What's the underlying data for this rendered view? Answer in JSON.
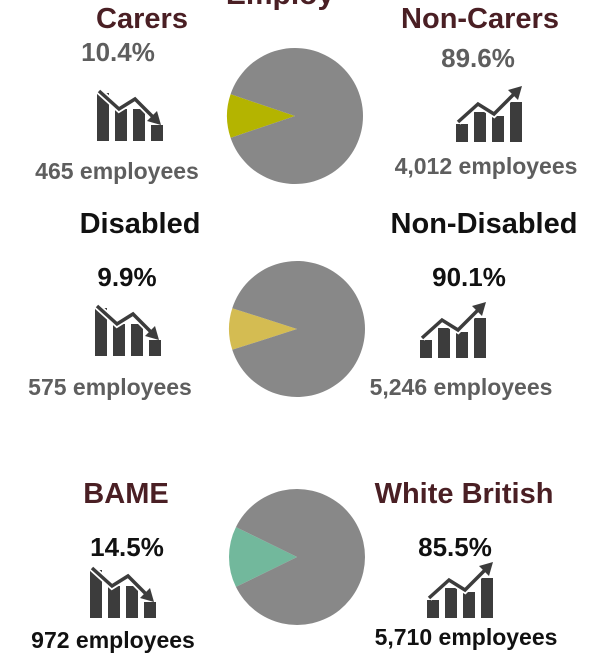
{
  "header": {
    "title_fragment": "Employ"
  },
  "colors": {
    "maroon": "#4a1f24",
    "black": "#111111",
    "gray_text": "#5e5e5e",
    "icon": "#3c3c3c",
    "pie_rest": "#888888"
  },
  "icons": {
    "down": "chart-trend-down-icon",
    "up": "chart-trend-up-icon"
  },
  "chart_data": [
    {
      "type": "pie",
      "left": {
        "label": "Carers",
        "percent_label": "10.4%",
        "employees_label": "465 employees"
      },
      "right": {
        "label": "Non-Carers",
        "percent_label": "89.6%",
        "employees_label": "4,012 employees"
      },
      "slices": [
        {
          "name": "Carers",
          "value": 10.4,
          "color": "#b4b400"
        },
        {
          "name": "Non-Carers",
          "value": 89.6,
          "color": "#888888"
        }
      ],
      "label_color": "#4a1f24",
      "pct_color": "#5e5e5e",
      "emp_color": "#5e5e5e"
    },
    {
      "type": "pie",
      "left": {
        "label": "Disabled",
        "percent_label": "9.9%",
        "employees_label": "575 employees"
      },
      "right": {
        "label": "Non-Disabled",
        "percent_label": "90.1%",
        "employees_label": "5,246 employees"
      },
      "slices": [
        {
          "name": "Disabled",
          "value": 9.9,
          "color": "#d4bc52"
        },
        {
          "name": "Non-Disabled",
          "value": 90.1,
          "color": "#888888"
        }
      ],
      "label_color": "#111111",
      "pct_color": "#111111",
      "emp_color": "#5e5e5e"
    },
    {
      "type": "pie",
      "left": {
        "label": "BAME",
        "percent_label": "14.5%",
        "employees_label": "972 employees"
      },
      "right": {
        "label": "White British",
        "percent_label": "85.5%",
        "employees_label": "5,710 employees"
      },
      "slices": [
        {
          "name": "BAME",
          "value": 14.5,
          "color": "#72b89c"
        },
        {
          "name": "White British",
          "value": 85.5,
          "color": "#888888"
        }
      ],
      "label_color": "#4a1f24",
      "pct_color": "#111111",
      "emp_color": "#111111"
    }
  ]
}
